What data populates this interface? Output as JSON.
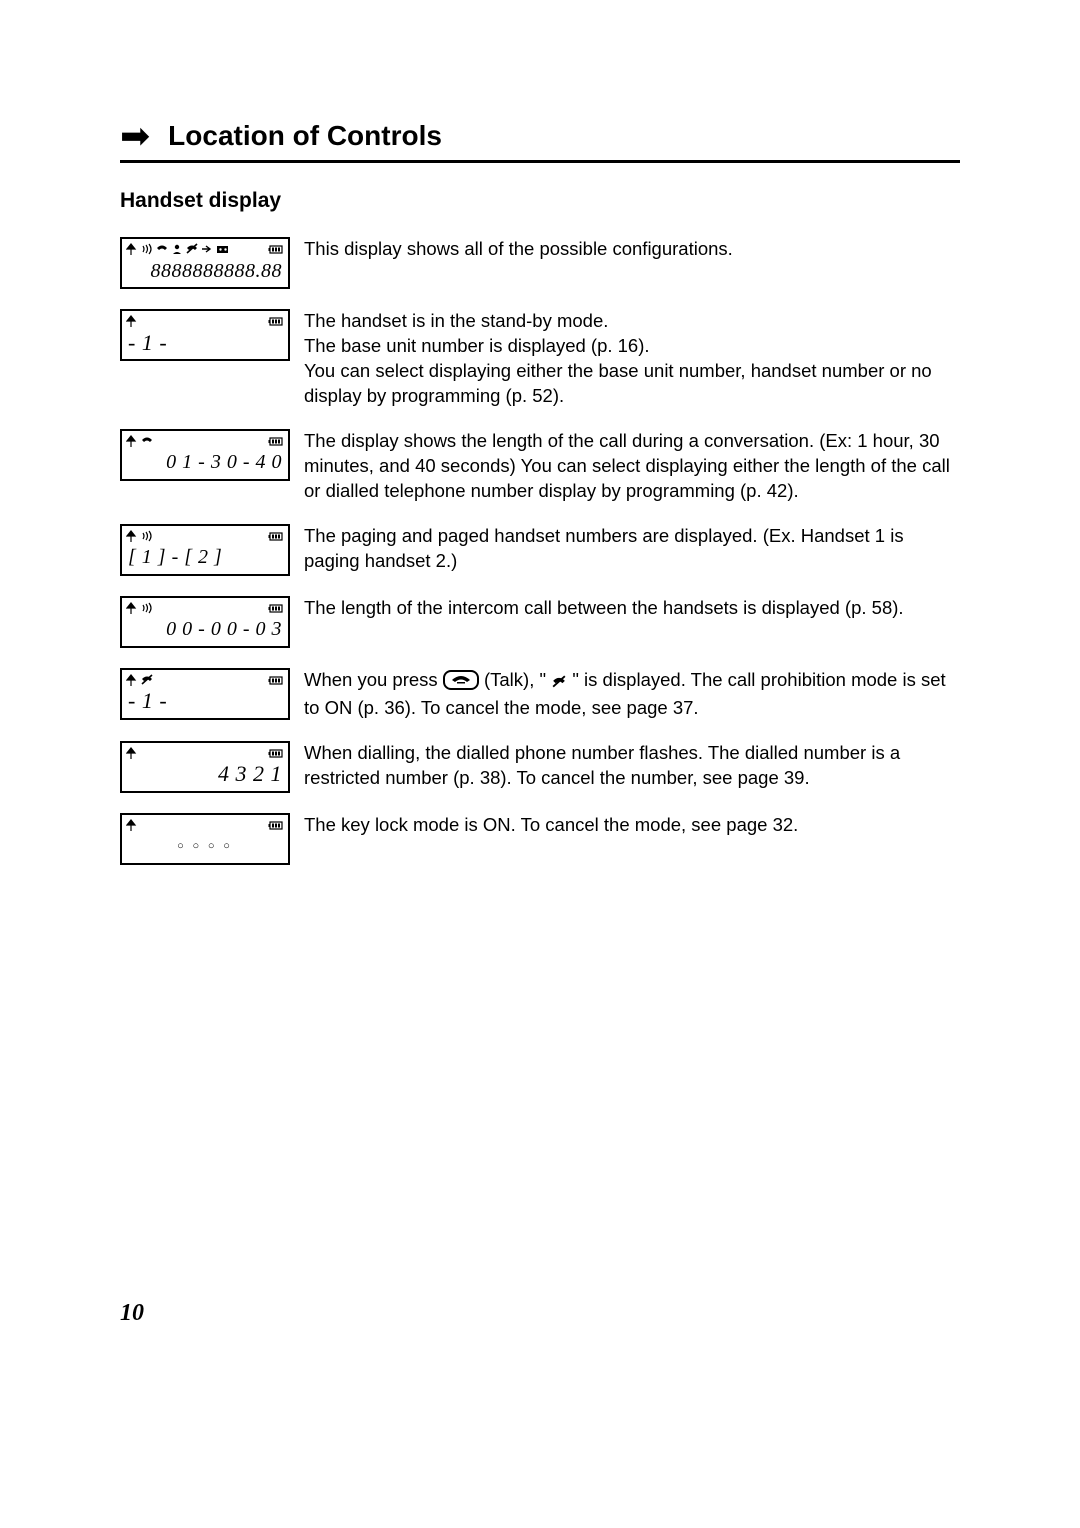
{
  "header": {
    "title": "Location of Controls",
    "subtitle": "Handset display"
  },
  "entries": [
    {
      "lcd": {
        "icons_left": [
          "antenna",
          "wave",
          "phone",
          "person",
          "noentry",
          "arrow",
          "tape"
        ],
        "icons_right": [
          "battery"
        ],
        "text": "8888888888.88",
        "align": "right"
      },
      "desc": "This display shows all of the possible configurations."
    },
    {
      "lcd": {
        "icons_left": [
          "antenna"
        ],
        "icons_right": [
          "battery"
        ],
        "text": "- 1 -",
        "align": "left"
      },
      "desc": "The handset is in the stand-by mode.\nThe base unit number is displayed (p. 16).\nYou can select displaying either the base unit number, handset number or no display by programming (p. 52)."
    },
    {
      "lcd": {
        "icons_left": [
          "antenna",
          "phone"
        ],
        "icons_right": [
          "battery"
        ],
        "text": "0 1 - 3 0 - 4 0",
        "align": "right"
      },
      "desc": "The display shows the length of the call during a conversation. (Ex: 1 hour, 30 minutes, and 40 seconds) You can select displaying either the length of the call or dialled telephone number display by programming (p. 42)."
    },
    {
      "lcd": {
        "icons_left": [
          "antenna",
          "wave"
        ],
        "icons_right": [
          "battery"
        ],
        "text": "[ 1 ] - [ 2 ]",
        "align": "left"
      },
      "desc": "The paging and paged handset numbers are displayed. (Ex. Handset 1 is paging handset 2.)"
    },
    {
      "lcd": {
        "icons_left": [
          "antenna",
          "wave"
        ],
        "icons_right": [
          "battery"
        ],
        "text": "0 0 - 0 0 - 0 3",
        "align": "right"
      },
      "desc": "The length of the intercom call between the handsets is displayed (p. 58)."
    },
    {
      "lcd": {
        "icons_left": [
          "antenna",
          "noentry"
        ],
        "icons_right": [
          "battery"
        ],
        "text": "- 1 -",
        "align": "left"
      },
      "desc_pre": "When you press ",
      "desc_talk_label": "(Talk), \" ",
      "desc_post": " \" is displayed. The call prohibition mode is set to ON (p. 36). To cancel the mode, see page 37."
    },
    {
      "lcd": {
        "icons_left": [
          "antenna"
        ],
        "icons_right": [
          "battery"
        ],
        "text": "4 3 2 1",
        "align": "right",
        "flash": true
      },
      "desc": "When dialling, the dialled phone number flashes. The dialled number is a restricted number (p. 38). To cancel the number, see page 39."
    },
    {
      "lcd": {
        "icons_left": [
          "antenna"
        ],
        "icons_right": [
          "battery"
        ],
        "text": "○ ○ ○ ○",
        "align": "center",
        "dots": true
      },
      "desc": "The key lock mode is ON. To cancel the mode, see page 32."
    }
  ],
  "page_number": "10"
}
